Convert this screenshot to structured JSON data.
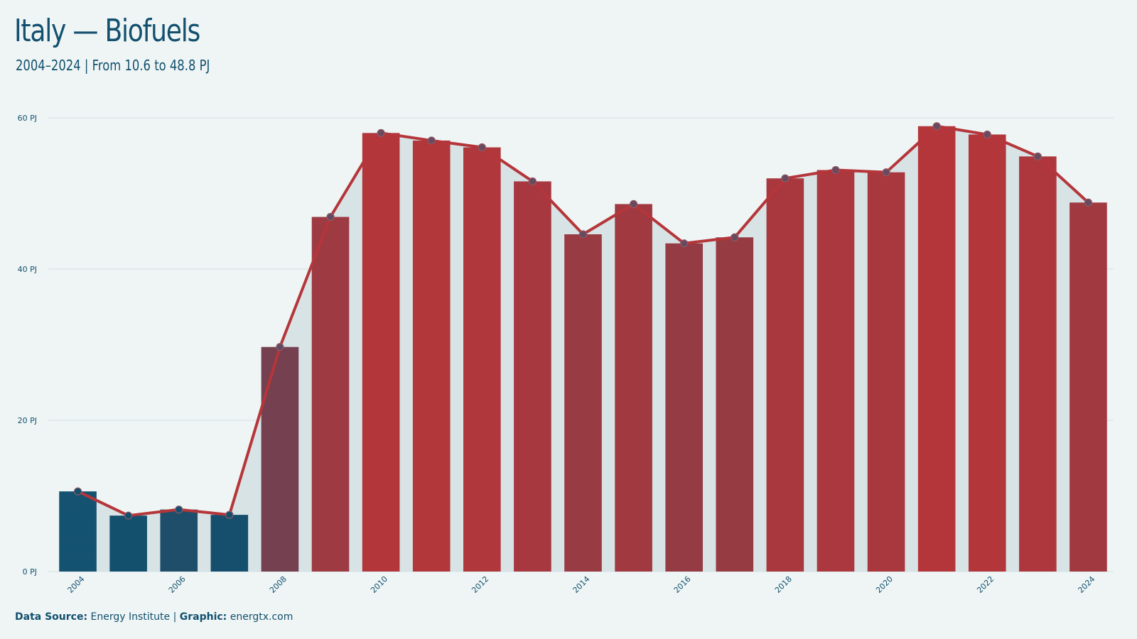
{
  "header": {
    "title": "Italy — Biofuels",
    "subtitle": "2004–2024 | From 10.6 to 48.8 PJ"
  },
  "footer": {
    "source_label": "Data Source:",
    "source_value": "Energy Institute",
    "separator": "|",
    "graphic_label": "Graphic:",
    "graphic_value": "energtx.com"
  },
  "colors": {
    "background": "#eff5f5",
    "low": "#12506e",
    "high": "#b5363a",
    "line": "#b5363a",
    "area": "#d8e3e6",
    "grid": "#d6dfe2",
    "text": "#12506e"
  },
  "chart_data": {
    "type": "bar",
    "title": "Italy — Biofuels",
    "subtitle": "2004–2024 | From 10.6 to 48.8 PJ",
    "xlabel": "",
    "ylabel": "",
    "unit": "PJ",
    "ylim": [
      0,
      60
    ],
    "yticks": [
      0,
      20,
      40,
      60
    ],
    "ytick_labels": [
      "0 PJ",
      "20 PJ",
      "40 PJ",
      "60 PJ"
    ],
    "grid": true,
    "categories": [
      "2004",
      "2005",
      "2006",
      "2007",
      "2008",
      "2009",
      "2010",
      "2011",
      "2012",
      "2013",
      "2014",
      "2015",
      "2016",
      "2017",
      "2018",
      "2019",
      "2020",
      "2021",
      "2022",
      "2023",
      "2024"
    ],
    "xtick_labels": [
      "2004",
      "2006",
      "2008",
      "2010",
      "2012",
      "2014",
      "2016",
      "2018",
      "2020",
      "2022",
      "2024"
    ],
    "values": [
      10.6,
      7.4,
      8.2,
      7.5,
      29.7,
      46.9,
      58.0,
      57.0,
      56.1,
      51.6,
      44.6,
      48.6,
      43.4,
      44.2,
      52.0,
      53.1,
      52.8,
      58.9,
      57.8,
      54.9,
      48.8
    ],
    "overlay": "line with markers and shaded area"
  }
}
